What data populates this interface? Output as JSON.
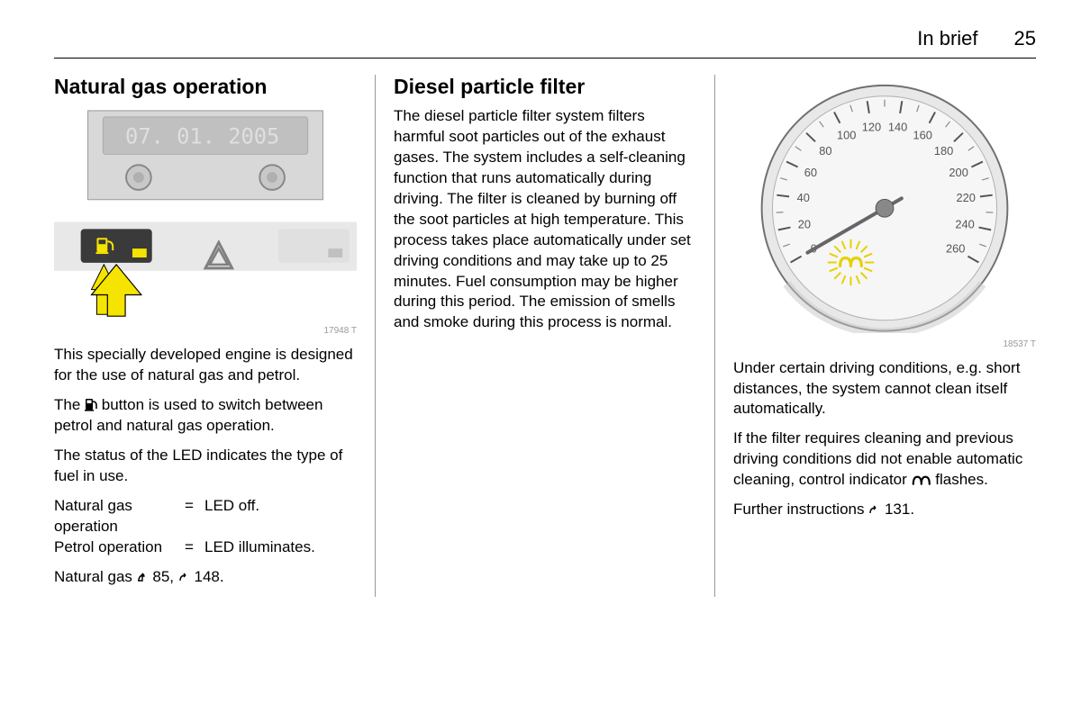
{
  "header": {
    "chapter": "In brief",
    "page": "25"
  },
  "col1": {
    "heading": "Natural gas operation",
    "fig_caption": "17948 T",
    "p1": "This specially developed engine is designed for the use of natural gas and petrol.",
    "p2a": "The ",
    "p2b": " button is used to switch between petrol and natural gas operation.",
    "p3": "The status of the LED indicates the type of fuel in use.",
    "status": [
      {
        "label": "Natural gas operation",
        "value": "LED off."
      },
      {
        "label": "Petrol operation",
        "value": "LED illuminates."
      }
    ],
    "p4a": "Natural gas ",
    "p4b": " 85, ",
    "p4c": " 148."
  },
  "col2": {
    "heading": "Diesel particle filter",
    "p1": "The diesel particle filter system filters harmful soot particles out of the exhaust gases. The system includes a self-cleaning function that runs automatically during driving. The filter is cleaned by burning off the soot particles at high temperature. This process takes place automatically under set driving conditions and may take up to 25 minutes. Fuel consumption may be higher during this period. The emission of smells and smoke during this process is normal."
  },
  "col3": {
    "fig_caption": "18537 T",
    "p1": "Under certain driving conditions, e.g. short distances, the system cannot clean itself automatically.",
    "p2a": "If the filter requires cleaning and previous driving conditions did not enable automatic cleaning, control indicator ",
    "p2b": " flashes.",
    "p3a": "Further instructions ",
    "p3b": " 131."
  },
  "gauge": {
    "ticks": [
      "20",
      "40",
      "60",
      "80",
      "100",
      "120",
      "140",
      "160",
      "180",
      "200",
      "220",
      "240",
      "260",
      "0"
    ],
    "needle_angle": -150
  },
  "colors": {
    "yellow": "#f5e400",
    "triangle_gray": "#808080",
    "panel_light": "#d8d8d8",
    "panel_mid": "#c0c0c0",
    "panel_dark": "#9a9a9a",
    "gauge_face": "#f2f2f2",
    "gauge_rim": "#707070",
    "text": "#000000"
  }
}
